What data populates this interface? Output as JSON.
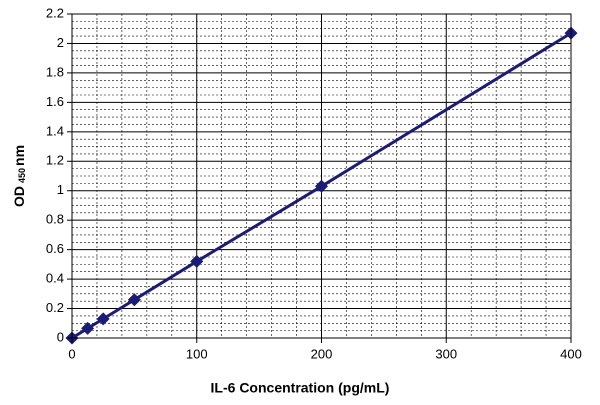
{
  "chart_data": {
    "type": "line",
    "x": [
      0,
      12.5,
      25,
      50,
      100,
      200,
      400
    ],
    "values": [
      0.0,
      0.065,
      0.13,
      0.26,
      0.52,
      1.03,
      2.07
    ],
    "color": "#1c1c78",
    "xlabel": "IL-6 Concentration (pg/mL)",
    "ylabel": {
      "main": "OD",
      "subscript": "450",
      "unit": "nm"
    },
    "xlim": [
      0,
      400
    ],
    "xticks": [
      0,
      100,
      200,
      300,
      400
    ],
    "ylim": [
      0,
      2.2
    ],
    "yticks": [
      0,
      0.2,
      0.4,
      0.6,
      0.8,
      1,
      1.2,
      1.4,
      1.6,
      1.8,
      2,
      2.2
    ],
    "grid": true,
    "minor_grid": true,
    "markers": true
  }
}
